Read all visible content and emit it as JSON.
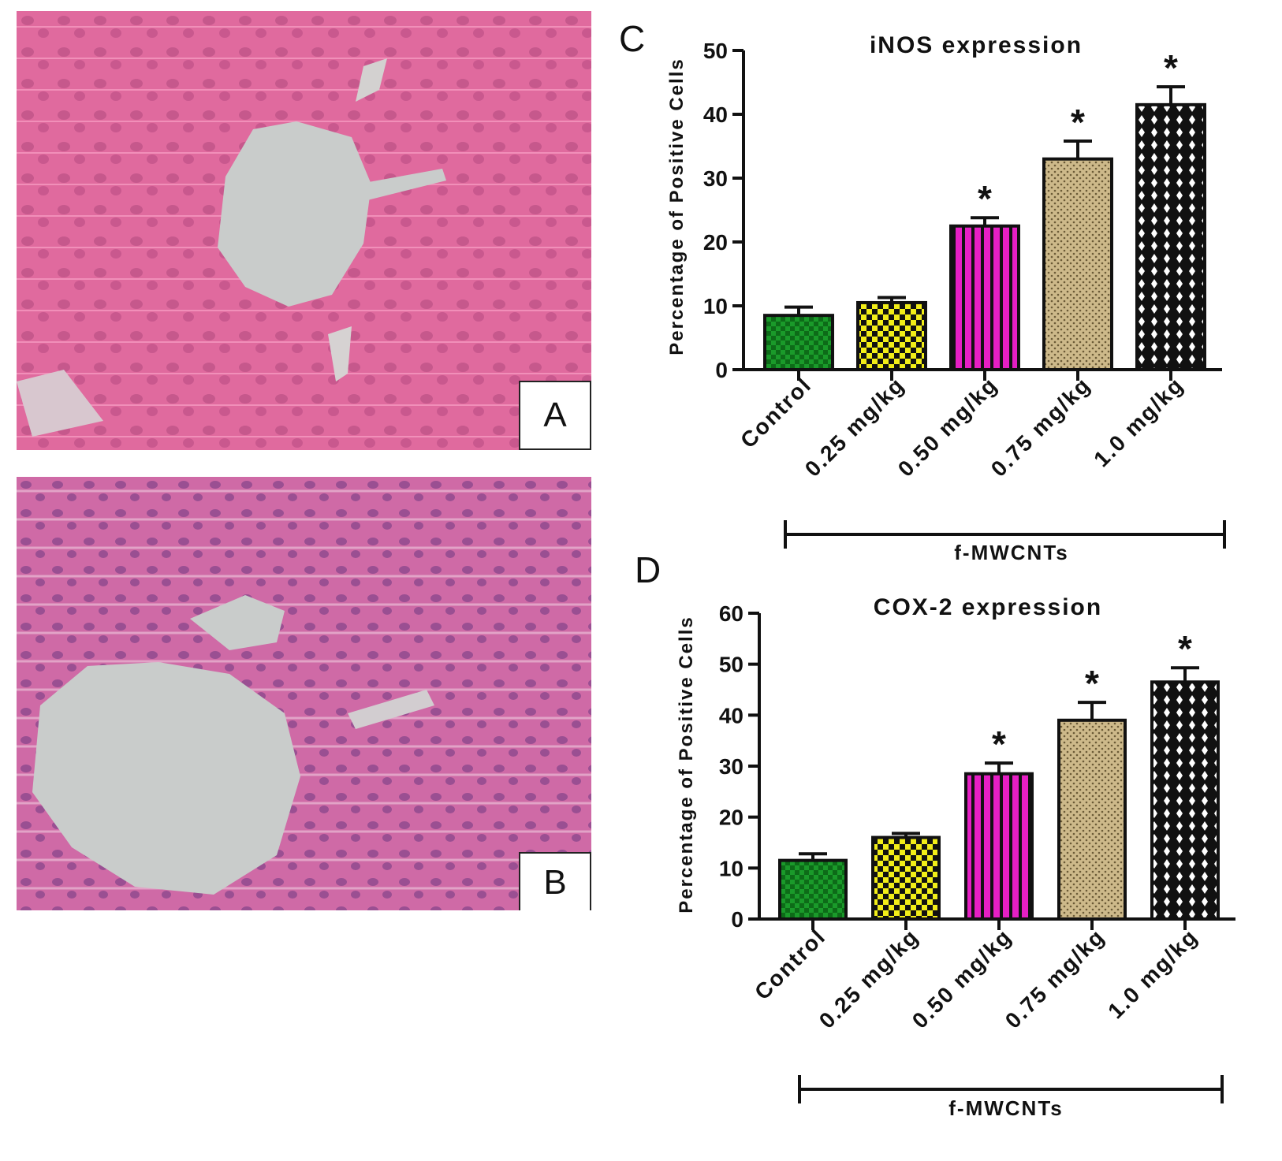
{
  "panels": {
    "a": {
      "label": "A"
    },
    "b": {
      "label": "B"
    },
    "c": {
      "label": "C"
    },
    "d": {
      "label": "D"
    }
  },
  "colors": {
    "tissue_a": "#e06a9e",
    "tissue_b": "#cf6aa6",
    "lumen": "#c9cccb",
    "nucleus": "#9a4f92",
    "green": "#1a9a2a",
    "yellow": "#f2ee18",
    "magenta": "#e61fc4",
    "tan": "#cdb98a",
    "black": "#111111"
  },
  "chart_data": [
    {
      "type": "bar",
      "title": "iNOS expression",
      "xlabel": "",
      "ylabel": "Percentage of Positive Cells",
      "ylim": [
        0,
        50
      ],
      "yticks": [
        0,
        10,
        20,
        30,
        40,
        50
      ],
      "categories": [
        "Control",
        "0.25 mg/kg",
        "0.50 mg/kg",
        "0.75 mg/kg",
        "1.0 mg/kg"
      ],
      "values": [
        8.5,
        10.5,
        22.5,
        33,
        41.5
      ],
      "errors": [
        1.3,
        0.8,
        1.3,
        2.8,
        2.8
      ],
      "significance": [
        "",
        "",
        "*",
        "*",
        "*"
      ],
      "fills": [
        "green-check",
        "yellow-check",
        "magenta-stripes",
        "tan-dots",
        "black-diamonds"
      ],
      "group_label": "f-MWCNTs",
      "grid": false
    },
    {
      "type": "bar",
      "title": "COX-2 expression",
      "xlabel": "",
      "ylabel": "Percentage of Positive Cells",
      "ylim": [
        0,
        60
      ],
      "yticks": [
        0,
        10,
        20,
        30,
        40,
        50,
        60
      ],
      "categories": [
        "Control",
        "0.25 mg/kg",
        "0.50 mg/kg",
        "0.75 mg/kg",
        "1.0 mg/kg"
      ],
      "values": [
        11.5,
        16,
        28.5,
        39,
        46.5
      ],
      "errors": [
        1.3,
        0.8,
        2.1,
        3.5,
        2.8
      ],
      "significance": [
        "",
        "",
        "*",
        "*",
        "*"
      ],
      "fills": [
        "green-check",
        "yellow-check",
        "magenta-stripes",
        "tan-dots",
        "black-diamonds"
      ],
      "group_label": "f-MWCNTs",
      "grid": false
    }
  ]
}
